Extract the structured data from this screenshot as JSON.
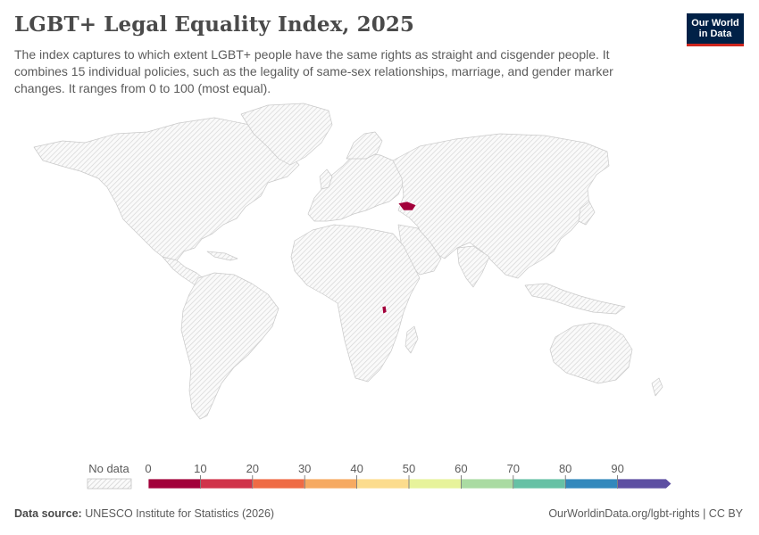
{
  "title": "LGBT+ Legal Equality Index, 2025",
  "subtitle": "The index captures to which extent LGBT+ people have the same rights as straight and cisgender people. It combines 15 individual policies, such as the legality of same-sex relationships, marriage, and gender marker changes. It ranges from 0 to 100 (most equal).",
  "logo": {
    "line1": "Our World",
    "line2": "in Data"
  },
  "legend": {
    "no_data_label": "No data",
    "ticks": [
      "0",
      "10",
      "20",
      "30",
      "40",
      "50",
      "60",
      "70",
      "80",
      "90"
    ],
    "bins": [
      {
        "from": 0,
        "to": 10,
        "color": "#a2003a"
      },
      {
        "from": 10,
        "to": 20,
        "color": "#d0334a"
      },
      {
        "from": 20,
        "to": 30,
        "color": "#ef6b45"
      },
      {
        "from": 30,
        "to": 40,
        "color": "#f6aa62"
      },
      {
        "from": 40,
        "to": 50,
        "color": "#fcdc8d"
      },
      {
        "from": 50,
        "to": 60,
        "color": "#e7f39b"
      },
      {
        "from": 60,
        "to": 70,
        "color": "#aadba2"
      },
      {
        "from": 70,
        "to": 80,
        "color": "#66c1a5"
      },
      {
        "from": 80,
        "to": 90,
        "color": "#3288bc"
      },
      {
        "from": 90,
        "to": 100,
        "color": "#5d4fa2"
      }
    ]
  },
  "highlighted_regions": [
    {
      "name": "Georgia",
      "value_bin": "0-10",
      "color": "#a2003a"
    },
    {
      "name": "Burundi",
      "value_bin": "0-10",
      "color": "#a2003a"
    }
  ],
  "map": {
    "type": "choropleth-world",
    "no_data_pattern": "hatched-grey",
    "land_color": "#e6e6e6",
    "border_color": "#c8c8c8"
  },
  "footer": {
    "source_label": "Data source:",
    "source_text": "UNESCO Institute for Statistics (2026)",
    "url": "OurWorldinData.org/lgbt-rights | CC BY"
  }
}
